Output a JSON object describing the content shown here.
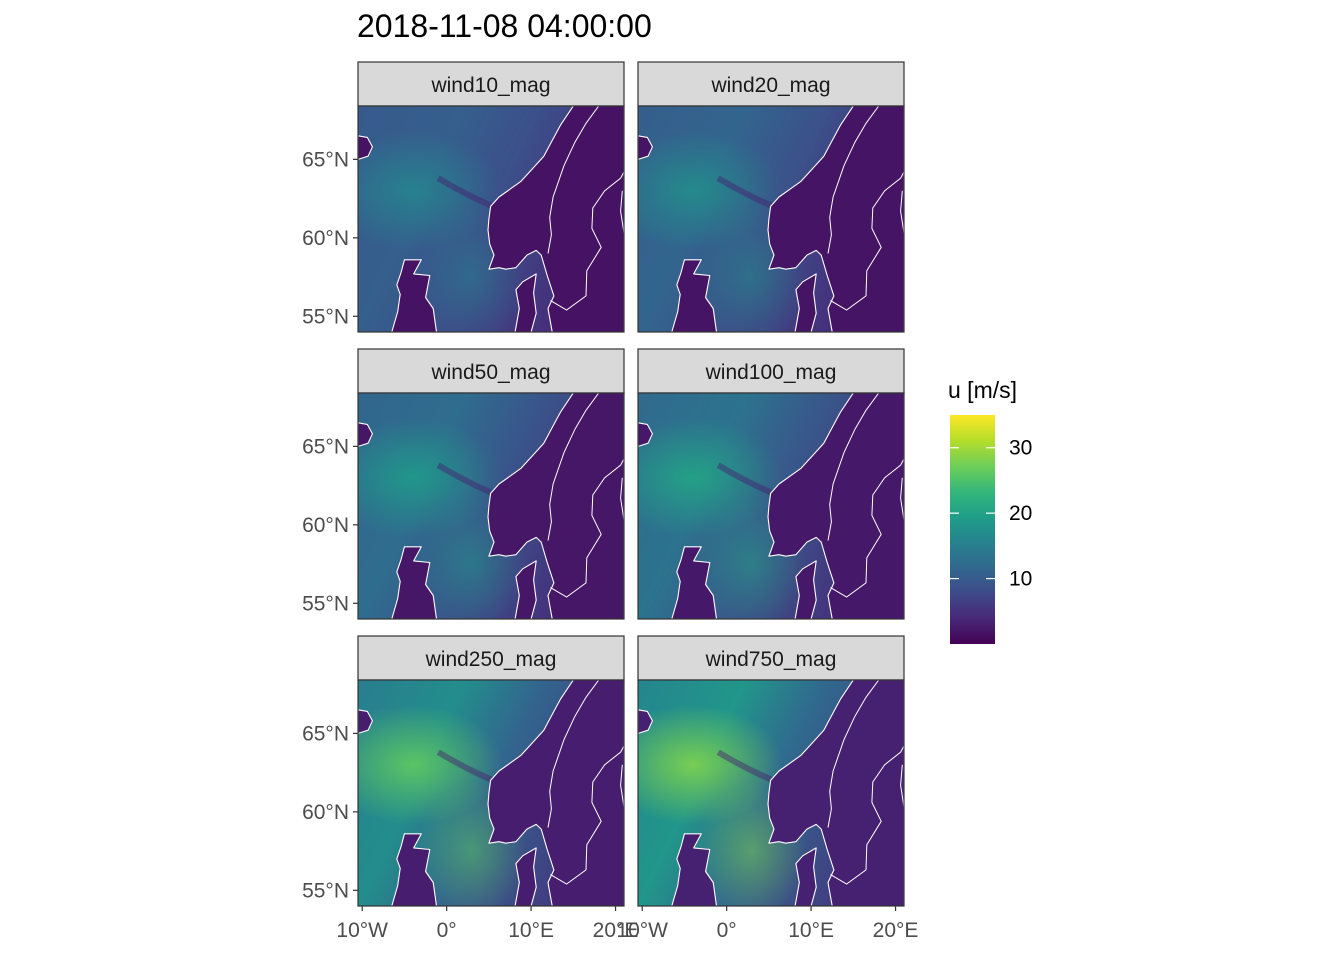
{
  "title": "2018-11-08 04:00:00",
  "colors": {
    "strip_background": "#d9d9d9",
    "panel_border": "#333333",
    "coastline": "#ffffff",
    "viridis": [
      "#440154",
      "#482878",
      "#3e4a89",
      "#31688e",
      "#26828e",
      "#1f9e89",
      "#35b779",
      "#6ece58",
      "#b5de2b",
      "#fde725"
    ]
  },
  "chart_data": {
    "type": "heatmap",
    "facets": [
      "wind10_mag",
      "wind20_mag",
      "wind50_mag",
      "wind100_mag",
      "wind250_mag",
      "wind750_mag"
    ],
    "x_axis": {
      "ticks": [
        -10,
        0,
        10,
        20
      ],
      "tick_labels": [
        "10°W",
        "0°",
        "10°E",
        "20°E"
      ],
      "range": [
        -10.5,
        21
      ]
    },
    "y_axis": {
      "ticks": [
        55,
        60,
        65
      ],
      "tick_labels": [
        "55°N",
        "60°N",
        "65°N"
      ],
      "range": [
        54,
        68.4
      ]
    },
    "legend": {
      "title": "u [m/s]",
      "ticks": [
        10,
        20,
        30
      ],
      "tick_labels": [
        "10",
        "20",
        "30"
      ],
      "range": [
        0,
        35
      ],
      "position": "right"
    },
    "grid": false,
    "facet_intensity": [
      0.0,
      0.05,
      0.12,
      0.18,
      0.42,
      0.5
    ]
  }
}
